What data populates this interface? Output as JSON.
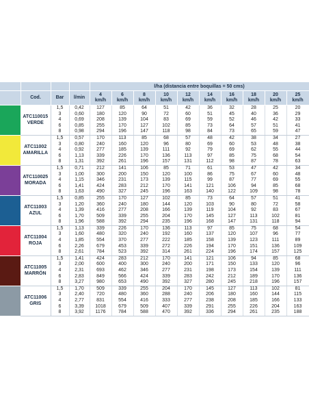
{
  "header": {
    "cod": "Cod.",
    "bar": "Bar",
    "lmin": "l/min",
    "lha_title": "l/ha (distancia entre boquillas = 50 cms)",
    "speeds": [
      "4\nkm/h",
      "6\nkm/h",
      "8\nkm/h",
      "10\nkm/h",
      "12\nkm/h",
      "14\nkm/h",
      "16\nkm/h",
      "18\nkm/h",
      "20\nkm/h",
      "25\nkm/h"
    ]
  },
  "colors": {
    "header_bg": "#c9d7e6",
    "verde": "#1aa65a",
    "amarilla": "#f2e93a",
    "morada": "#7b3f98",
    "azul": "#1c5f93",
    "roja": "#e2233a",
    "marron": "#5a1a13",
    "gris": "#8c9aa5"
  },
  "groups": [
    {
      "model": "ATC110015",
      "name": "VERDE",
      "color": "#1aa65a",
      "rows": [
        [
          "1,5",
          "0,42",
          "127",
          "85",
          "64",
          "51",
          "42",
          "36",
          "32",
          "28",
          "25",
          "20"
        ],
        [
          "3",
          "0,60",
          "180",
          "120",
          "90",
          "72",
          "60",
          "51",
          "45",
          "40",
          "36",
          "29"
        ],
        [
          "4",
          "0,69",
          "208",
          "139",
          "104",
          "83",
          "69",
          "59",
          "52",
          "46",
          "42",
          "33"
        ],
        [
          "6",
          "0,85",
          "255",
          "170",
          "127",
          "102",
          "85",
          "73",
          "64",
          "57",
          "51",
          "41"
        ],
        [
          "8",
          "0,98",
          "294",
          "196",
          "147",
          "118",
          "98",
          "84",
          "73",
          "65",
          "59",
          "47"
        ]
      ]
    },
    {
      "model": "ATC11002",
      "name": "AMARILLA",
      "color": "#f2e93a",
      "rows": [
        [
          "1,5",
          "0,57",
          "170",
          "113",
          "85",
          "68",
          "57",
          "48",
          "42",
          "38",
          "34",
          "27"
        ],
        [
          "3",
          "0,80",
          "240",
          "160",
          "120",
          "96",
          "80",
          "69",
          "60",
          "53",
          "48",
          "38"
        ],
        [
          "4",
          "0,92",
          "277",
          "185",
          "139",
          "111",
          "92",
          "79",
          "69",
          "62",
          "55",
          "44"
        ],
        [
          "6",
          "1,13",
          "339",
          "226",
          "170",
          "136",
          "113",
          "97",
          "85",
          "75",
          "68",
          "54"
        ],
        [
          "8",
          "1,31",
          "392",
          "261",
          "196",
          "157",
          "131",
          "112",
          "98",
          "87",
          "78",
          "63"
        ]
      ]
    },
    {
      "model": "ATC110025",
      "name": "MORADA",
      "color": "#7b3f98",
      "rows": [
        [
          "1,5",
          "0,71",
          "212",
          "141",
          "106",
          "85",
          "71",
          "61",
          "53",
          "47",
          "42",
          "34"
        ],
        [
          "3",
          "1,00",
          "300",
          "200",
          "150",
          "120",
          "100",
          "86",
          "75",
          "67",
          "60",
          "48"
        ],
        [
          "4",
          "1,15",
          "346",
          "231",
          "173",
          "139",
          "115",
          "99",
          "87",
          "77",
          "69",
          "55"
        ],
        [
          "6",
          "1,41",
          "424",
          "283",
          "212",
          "170",
          "141",
          "121",
          "106",
          "94",
          "85",
          "68"
        ],
        [
          "8",
          "1,63",
          "490",
          "327",
          "245",
          "196",
          "163",
          "140",
          "122",
          "109",
          "98",
          "78"
        ]
      ]
    },
    {
      "model": "ATC11003",
      "name": "AZUL",
      "color": "#1c5f93",
      "rows": [
        [
          "1,5",
          "0,85",
          "255",
          "170",
          "127",
          "102",
          "85",
          "73",
          "64",
          "57",
          "51",
          "41"
        ],
        [
          "3",
          "1,20",
          "360",
          "240",
          "180",
          "144",
          "120",
          "103",
          "90",
          "80",
          "72",
          "58"
        ],
        [
          "4",
          "1,39",
          "416",
          "277",
          "208",
          "166",
          "139",
          "119",
          "104",
          "92",
          "83",
          "67"
        ],
        [
          "6",
          "1,70",
          "509",
          "339",
          "255",
          "204",
          "170",
          "145",
          "127",
          "113",
          "102",
          "81"
        ],
        [
          "8",
          "1,96",
          "588",
          "392",
          "294",
          "235",
          "196",
          "168",
          "147",
          "131",
          "118",
          "94"
        ]
      ]
    },
    {
      "model": "ATC11004",
      "name": "ROJA",
      "color": "#e2233a",
      "rows": [
        [
          "1,5",
          "1,13",
          "339",
          "226",
          "170",
          "136",
          "113",
          "97",
          "85",
          "75",
          "68",
          "54"
        ],
        [
          "3",
          "1,60",
          "480",
          "320",
          "240",
          "192",
          "160",
          "137",
          "120",
          "107",
          "96",
          "77"
        ],
        [
          "4",
          "1,85",
          "554",
          "370",
          "277",
          "222",
          "185",
          "158",
          "139",
          "123",
          "111",
          "89"
        ],
        [
          "6",
          "2,26",
          "679",
          "453",
          "339",
          "272",
          "226",
          "194",
          "170",
          "151",
          "136",
          "109"
        ],
        [
          "8",
          "2,61",
          "784",
          "523",
          "392",
          "314",
          "261",
          "224",
          "196",
          "174",
          "157",
          "125"
        ]
      ]
    },
    {
      "model": "ATC11005",
      "name": "MARRÓN",
      "color": "#5a1a13",
      "rows": [
        [
          "1,5",
          "1,41",
          "424",
          "283",
          "212",
          "170",
          "141",
          "121",
          "106",
          "94",
          "85",
          "68"
        ],
        [
          "3",
          "2,00",
          "600",
          "400",
          "300",
          "240",
          "200",
          "171",
          "150",
          "133",
          "120",
          "96"
        ],
        [
          "4",
          "2,31",
          "693",
          "462",
          "346",
          "277",
          "231",
          "198",
          "173",
          "154",
          "139",
          "111"
        ],
        [
          "6",
          "2,83",
          "849",
          "566",
          "424",
          "339",
          "283",
          "242",
          "212",
          "189",
          "170",
          "136"
        ],
        [
          "8",
          "3,27",
          "980",
          "653",
          "490",
          "392",
          "327",
          "280",
          "245",
          "218",
          "196",
          "157"
        ]
      ]
    },
    {
      "model": "ATC11006",
      "name": "GRIS",
      "color": "#8c9aa5",
      "rows": [
        [
          "1,5",
          "1,70",
          "509",
          "339",
          "255",
          "204",
          "170",
          "145",
          "127",
          "113",
          "102",
          "81"
        ],
        [
          "3",
          "2,40",
          "720",
          "480",
          "360",
          "288",
          "240",
          "206",
          "180",
          "160",
          "144",
          "115"
        ],
        [
          "4",
          "2,77",
          "831",
          "554",
          "416",
          "333",
          "277",
          "238",
          "208",
          "185",
          "166",
          "133"
        ],
        [
          "6",
          "3,39",
          "1018",
          "679",
          "509",
          "407",
          "339",
          "291",
          "255",
          "226",
          "204",
          "163"
        ],
        [
          "8",
          "3,92",
          "1176",
          "784",
          "588",
          "470",
          "392",
          "336",
          "294",
          "261",
          "235",
          "188"
        ]
      ]
    }
  ]
}
